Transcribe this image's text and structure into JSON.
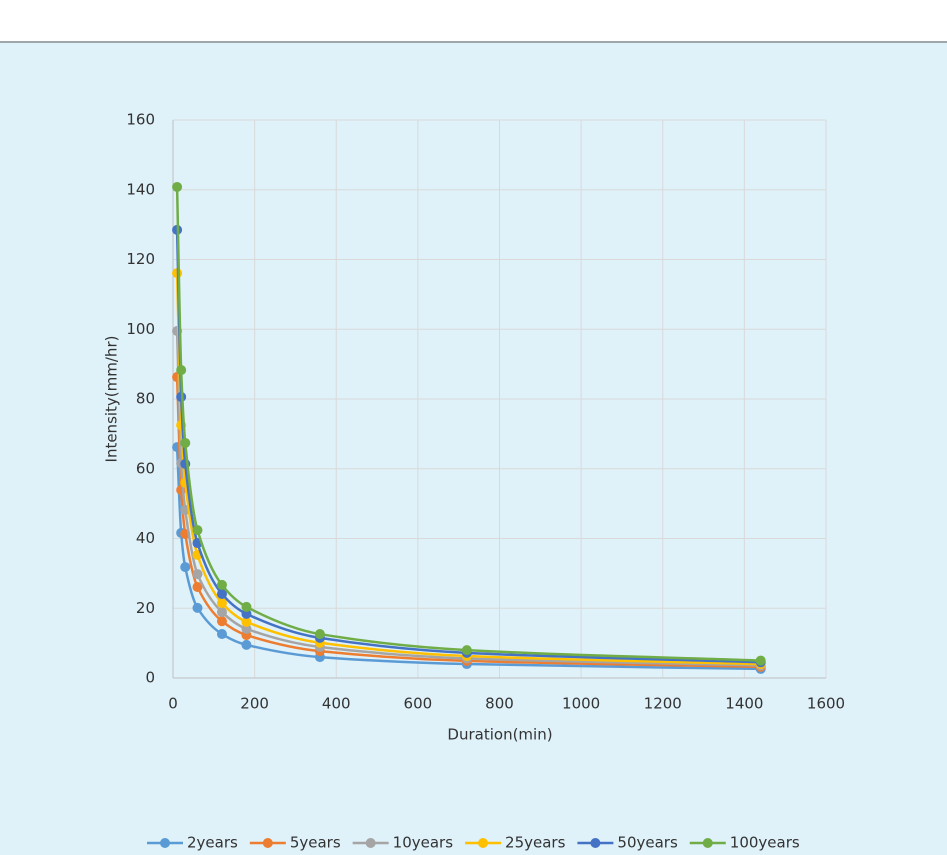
{
  "chart_data": {
    "type": "scatter",
    "x_label": "Duration(min)",
    "y_label": "Intensity(mm/hr)",
    "x": [
      10,
      20,
      30,
      60,
      120,
      180,
      360,
      720,
      1440
    ],
    "series": [
      {
        "name": "2years",
        "color": "#5b9bd5",
        "values": [
          66.2,
          41.6,
          31.8,
          20.1,
          12.6,
          9.5,
          6.0,
          4.0,
          2.6
        ]
      },
      {
        "name": "5years",
        "color": "#ed7d31",
        "values": [
          86.3,
          53.9,
          41.3,
          26.1,
          16.3,
          12.3,
          7.7,
          4.9,
          3.2
        ]
      },
      {
        "name": "10years",
        "color": "#a5a5a5",
        "values": [
          99.5,
          61.6,
          48.2,
          29.8,
          18.9,
          14.1,
          8.9,
          5.6,
          3.6
        ]
      },
      {
        "name": "25years",
        "color": "#ffc000",
        "values": [
          116.1,
          72.5,
          56.0,
          35.3,
          21.5,
          16.1,
          10.1,
          6.3,
          4.0
        ]
      },
      {
        "name": "50years",
        "color": "#4472c4",
        "values": [
          128.5,
          80.6,
          61.4,
          38.7,
          24.1,
          18.4,
          11.5,
          7.2,
          4.5
        ]
      },
      {
        "name": "100years",
        "color": "#70ad47",
        "values": [
          140.8,
          88.3,
          67.4,
          42.4,
          26.7,
          20.4,
          12.6,
          8.0,
          5.0
        ]
      }
    ],
    "xlim": [
      0,
      1600
    ],
    "xticks": [
      0,
      200,
      400,
      600,
      800,
      1000,
      1200,
      1400,
      1600
    ],
    "ylim": [
      0,
      160
    ],
    "yticks": [
      0,
      20,
      40,
      60,
      80,
      100,
      120,
      140,
      160
    ],
    "grid": true,
    "smooth": true,
    "legend": "bottom"
  }
}
